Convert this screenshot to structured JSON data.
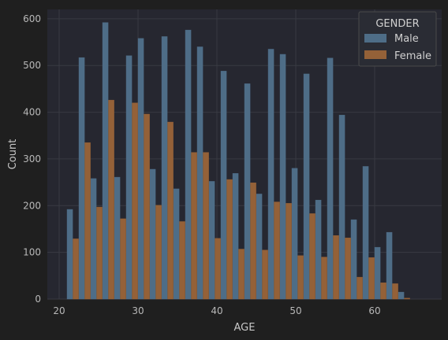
{
  "chart_data": {
    "type": "bar",
    "xlabel": "AGE",
    "ylabel": "Count",
    "xlim": [
      18.5,
      68.5
    ],
    "ylim": [
      0,
      620
    ],
    "xticks": [
      20,
      30,
      40,
      50,
      60
    ],
    "yticks": [
      0,
      100,
      200,
      300,
      400,
      500,
      600
    ],
    "grid": true,
    "legend": {
      "title": "GENDER",
      "placement": "top-right"
    },
    "bin_width": 1.5,
    "bin_starts": [
      21,
      22.5,
      24,
      25.5,
      27,
      28.5,
      30,
      31.5,
      33,
      34.5,
      36,
      37.5,
      39,
      40.5,
      42,
      43.5,
      45,
      46.5,
      48,
      49.5,
      51,
      52.5,
      54,
      55.5,
      57,
      58.5,
      60,
      61.5,
      63,
      64.5,
      66
    ],
    "series": [
      {
        "name": "Male",
        "color": "#4e6d87",
        "values": [
          192,
          517,
          258,
          592,
          261,
          521,
          558,
          278,
          562,
          236,
          576,
          540,
          252,
          488,
          269,
          461,
          225,
          535,
          524,
          280,
          482,
          212,
          516,
          394,
          170,
          284,
          111,
          143,
          15,
          0,
          0
        ]
      },
      {
        "name": "Female",
        "color": "#946138",
        "values": [
          129,
          335,
          197,
          426,
          172,
          420,
          396,
          201,
          379,
          166,
          314,
          314,
          130,
          256,
          107,
          249,
          105,
          208,
          205,
          93,
          183,
          90,
          136,
          131,
          47,
          89,
          35,
          33,
          2,
          0,
          0
        ]
      }
    ]
  }
}
